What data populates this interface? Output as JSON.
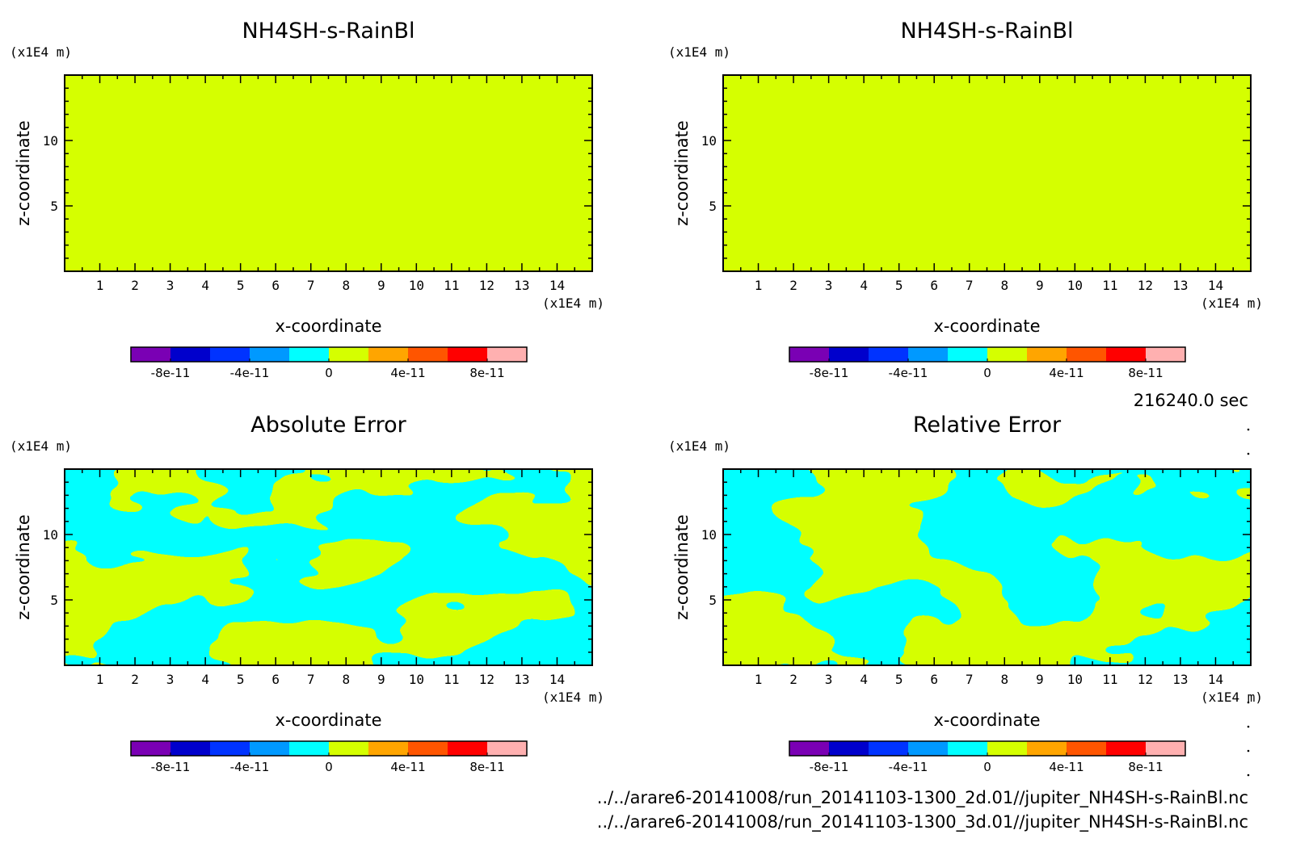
{
  "colors": {
    "background": "#ffffff",
    "axis": "#000000",
    "level_0": "#d5ff00",
    "level_neg": "#00ffff"
  },
  "colorbar": {
    "colors": [
      "#7a00b4",
      "#0000cc",
      "#0033ff",
      "#0099ff",
      "#00ffff",
      "#d5ff00",
      "#ffa500",
      "#ff5500",
      "#ff0000",
      "#ffb0b0"
    ],
    "tick_labels": [
      "-8e-11",
      "-4e-11",
      "0",
      "4e-11",
      "8e-11"
    ]
  },
  "time_label": "216240.0 sec",
  "file_paths": [
    "../../arare6-20141008/run_20141103-1300_2d.01//jupiter_NH4SH-s-RainBl.nc",
    "../../arare6-20141008/run_20141103-1300_3d.01//jupiter_NH4SH-s-RainBl.nc"
  ],
  "chart_data": [
    {
      "type": "heatmap",
      "title": "NH4SH-s-RainBl",
      "xlabel": "x-coordinate",
      "ylabel": "z-coordinate",
      "x_unit": "(x1E4 m)",
      "y_unit": "(x1E4 m)",
      "xlim": [
        0,
        15
      ],
      "ylim": [
        0,
        15
      ],
      "xticks": [
        "1",
        "2",
        "3",
        "4",
        "5",
        "6",
        "7",
        "8",
        "9",
        "10",
        "11",
        "12",
        "13",
        "14"
      ],
      "yticks": [
        "5",
        "10"
      ],
      "uniform_value": 0,
      "field_color": "#d5ff00"
    },
    {
      "type": "heatmap",
      "title": "NH4SH-s-RainBl",
      "xlabel": "x-coordinate",
      "ylabel": "z-coordinate",
      "x_unit": "(x1E4 m)",
      "y_unit": "(x1E4 m)",
      "xlim": [
        0,
        15
      ],
      "ylim": [
        0,
        15
      ],
      "xticks": [
        "1",
        "2",
        "3",
        "4",
        "5",
        "6",
        "7",
        "8",
        "9",
        "10",
        "11",
        "12",
        "13",
        "14"
      ],
      "yticks": [
        "5",
        "10"
      ],
      "uniform_value": 0,
      "field_color": "#d5ff00"
    },
    {
      "type": "heatmap",
      "title": "Absolute Error",
      "xlabel": "x-coordinate",
      "ylabel": "z-coordinate",
      "x_unit": "(x1E4 m)",
      "y_unit": "(x1E4 m)",
      "xlim": [
        0,
        15
      ],
      "ylim": [
        0,
        15
      ],
      "xticks": [
        "1",
        "2",
        "3",
        "4",
        "5",
        "6",
        "7",
        "8",
        "9",
        "10",
        "11",
        "12",
        "13",
        "14"
      ],
      "yticks": [
        "5",
        "10"
      ],
      "levels": [
        0,
        -4e-11
      ],
      "pattern": "mottled contour field of two levels (yellow-green = 0 level, cyan = next lower level)"
    },
    {
      "type": "heatmap",
      "title": "Relative Error",
      "xlabel": "x-coordinate",
      "ylabel": "z-coordinate",
      "x_unit": "(x1E4 m)",
      "y_unit": "(x1E4 m)",
      "xlim": [
        0,
        15
      ],
      "ylim": [
        0,
        15
      ],
      "xticks": [
        "1",
        "2",
        "3",
        "4",
        "5",
        "6",
        "7",
        "8",
        "9",
        "10",
        "11",
        "12",
        "13",
        "14"
      ],
      "yticks": [
        "5",
        "10"
      ],
      "levels": [
        0,
        -4e-11
      ],
      "pattern": "mottled contour field of two levels (yellow-green = 0 level, cyan = next lower level)"
    }
  ]
}
